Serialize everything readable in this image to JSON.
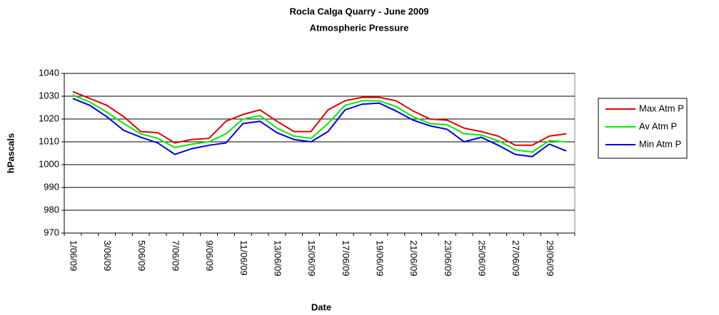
{
  "chart_data": {
    "type": "line",
    "title": "Rocla Calga Quarry - June 2009",
    "subtitle": "Atmospheric Pressure",
    "x_label": "Date",
    "y_label": "hPascals",
    "categories": [
      "1/06/09",
      null,
      "3/06/09",
      null,
      "5/06/09",
      null,
      "7/06/09",
      null,
      "9/06/09",
      null,
      "11/06/09",
      null,
      "13/06/09",
      null,
      "15/06/09",
      null,
      "17/06/09",
      null,
      "19/06/09",
      null,
      "21/06/09",
      null,
      "23/06/09",
      null,
      "25/06/09",
      null,
      "27/06/09",
      null,
      "29/06/09",
      null
    ],
    "series": [
      {
        "name": "Max Atm P",
        "color": "#e00000",
        "values": [
          1032,
          1029,
          1026,
          1021,
          1014.5,
          1014,
          1009.5,
          1011,
          1011.5,
          1019,
          1022,
          1024,
          1019,
          1014.5,
          1014.5,
          1024,
          1028,
          1029.5,
          1029.5,
          1028,
          1023.5,
          1020,
          1019.5,
          1016,
          1014.5,
          1012.5,
          1008.5,
          1008.5,
          1012.5,
          1013.5
        ]
      },
      {
        "name": "Av Atm P",
        "color": "#00ee00",
        "values": [
          1030.5,
          1027.5,
          1023,
          1018,
          1013.5,
          1011.5,
          1007.5,
          1009,
          1010,
          1013.5,
          1020,
          1021.5,
          1016,
          1012.5,
          1011.5,
          1018,
          1026,
          1028,
          1028,
          1025.5,
          1021,
          1018,
          1017.5,
          1013.5,
          1013,
          1010.5,
          1006.5,
          1005.5,
          1010.5,
          1010
        ]
      },
      {
        "name": "Min Atm P",
        "color": "#0000dd",
        "values": [
          1029,
          1026,
          1021,
          1015,
          1012,
          1009.5,
          1004.5,
          1007,
          1008.5,
          1009.5,
          1018,
          1019,
          1014,
          1011,
          1010,
          1014.5,
          1024,
          1026.5,
          1027,
          1023.5,
          1019.5,
          1017,
          1015.5,
          1010,
          1012,
          1008.5,
          1004.5,
          1003.5,
          1009,
          1006
        ]
      }
    ],
    "ylim": [
      970,
      1040
    ],
    "yticks": [
      970,
      980,
      990,
      1000,
      1010,
      1020,
      1030,
      1040
    ],
    "grid": true,
    "legend": "right"
  }
}
